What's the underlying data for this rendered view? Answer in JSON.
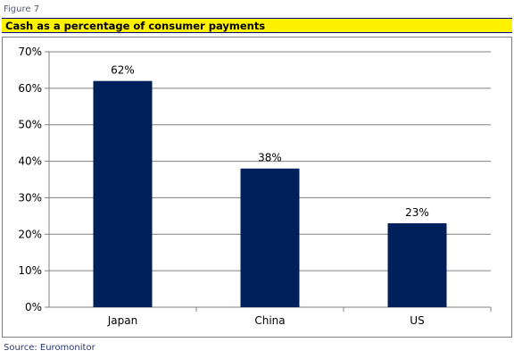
{
  "header": {
    "figure_label": "Figure 7",
    "title": "Cash as a percentage of consumer payments"
  },
  "footer": {
    "source": "Source: Euromonitor"
  },
  "colors": {
    "bar": "#00205b",
    "title_bg": "#fff200",
    "grid": "#808080"
  },
  "chart_data": {
    "type": "bar",
    "title": "Cash as a percentage of consumer payments",
    "categories": [
      "Japan",
      "China",
      "US"
    ],
    "values": [
      62,
      38,
      23
    ],
    "data_labels": [
      "62%",
      "38%",
      "23%"
    ],
    "y_ticks": [
      "0%",
      "10%",
      "20%",
      "30%",
      "40%",
      "50%",
      "60%",
      "70%"
    ],
    "ylim": [
      0,
      70
    ],
    "grid": true,
    "legend": "none"
  }
}
